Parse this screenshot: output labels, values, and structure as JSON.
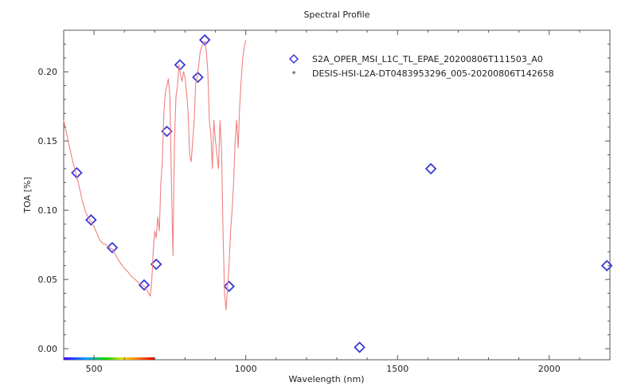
{
  "chart_data": {
    "type": "scatter",
    "title": "Spectral Profile",
    "xlabel": "Wavelength (nm)",
    "ylabel": "TOA [%]",
    "xlim": [
      400,
      2200
    ],
    "ylim": [
      -0.008,
      0.23
    ],
    "x_ticks": [
      500,
      1000,
      1500,
      2000
    ],
    "y_ticks": [
      0.0,
      0.05,
      0.1,
      0.15,
      0.2
    ],
    "x_tick_labels": [
      "500",
      "1000",
      "1500",
      "2000"
    ],
    "y_tick_labels": [
      "0.00",
      "0.05",
      "0.10",
      "0.15",
      "0.20"
    ],
    "grid": false,
    "legend_position": "top-right",
    "spectrum_bar": true,
    "series": [
      {
        "name": "S2A_OPER_MSI_L1C_TL_EPAE_20200806T111503_A0",
        "kind": "markers",
        "marker": "diamond",
        "color": "#3a3ad6",
        "x": [
          443,
          490,
          560,
          665,
          705,
          740,
          783,
          842,
          865,
          945,
          1375,
          1610,
          2190
        ],
        "y": [
          0.127,
          0.093,
          0.073,
          0.046,
          0.061,
          0.157,
          0.205,
          0.196,
          0.223,
          0.045,
          0.001,
          0.13,
          0.06
        ]
      },
      {
        "name": "DESIS-HSI-L2A-DT0483953296_005-20200806T142658",
        "kind": "line",
        "color": "#f08080",
        "x": [
          400,
          410,
          420,
          430,
          440,
          450,
          460,
          470,
          480,
          490,
          500,
          510,
          520,
          530,
          540,
          550,
          560,
          570,
          580,
          590,
          600,
          610,
          620,
          630,
          640,
          650,
          660,
          670,
          680,
          685,
          690,
          695,
          700,
          705,
          710,
          715,
          720,
          725,
          730,
          735,
          740,
          745,
          750,
          755,
          760,
          765,
          770,
          775,
          780,
          785,
          790,
          795,
          800,
          805,
          810,
          815,
          820,
          825,
          830,
          835,
          840,
          845,
          850,
          855,
          860,
          865,
          870,
          875,
          880,
          885,
          890,
          895,
          900,
          905,
          910,
          915,
          920,
          925,
          930,
          935,
          940,
          945,
          950,
          955,
          960,
          965,
          970,
          975,
          980,
          985,
          990,
          995,
          1000
        ],
        "y": [
          0.165,
          0.155,
          0.145,
          0.135,
          0.127,
          0.118,
          0.108,
          0.1,
          0.095,
          0.092,
          0.088,
          0.083,
          0.078,
          0.076,
          0.075,
          0.073,
          0.072,
          0.068,
          0.064,
          0.061,
          0.058,
          0.056,
          0.053,
          0.051,
          0.049,
          0.047,
          0.046,
          0.044,
          0.04,
          0.038,
          0.048,
          0.07,
          0.085,
          0.08,
          0.095,
          0.085,
          0.12,
          0.135,
          0.17,
          0.185,
          0.19,
          0.195,
          0.182,
          0.12,
          0.067,
          0.15,
          0.182,
          0.19,
          0.205,
          0.198,
          0.193,
          0.2,
          0.196,
          0.185,
          0.17,
          0.14,
          0.135,
          0.15,
          0.165,
          0.192,
          0.196,
          0.205,
          0.215,
          0.218,
          0.22,
          0.222,
          0.215,
          0.2,
          0.165,
          0.155,
          0.13,
          0.165,
          0.15,
          0.14,
          0.13,
          0.165,
          0.145,
          0.085,
          0.04,
          0.028,
          0.045,
          0.06,
          0.085,
          0.1,
          0.12,
          0.15,
          0.165,
          0.145,
          0.175,
          0.195,
          0.21,
          0.218,
          0.223
        ]
      }
    ]
  }
}
